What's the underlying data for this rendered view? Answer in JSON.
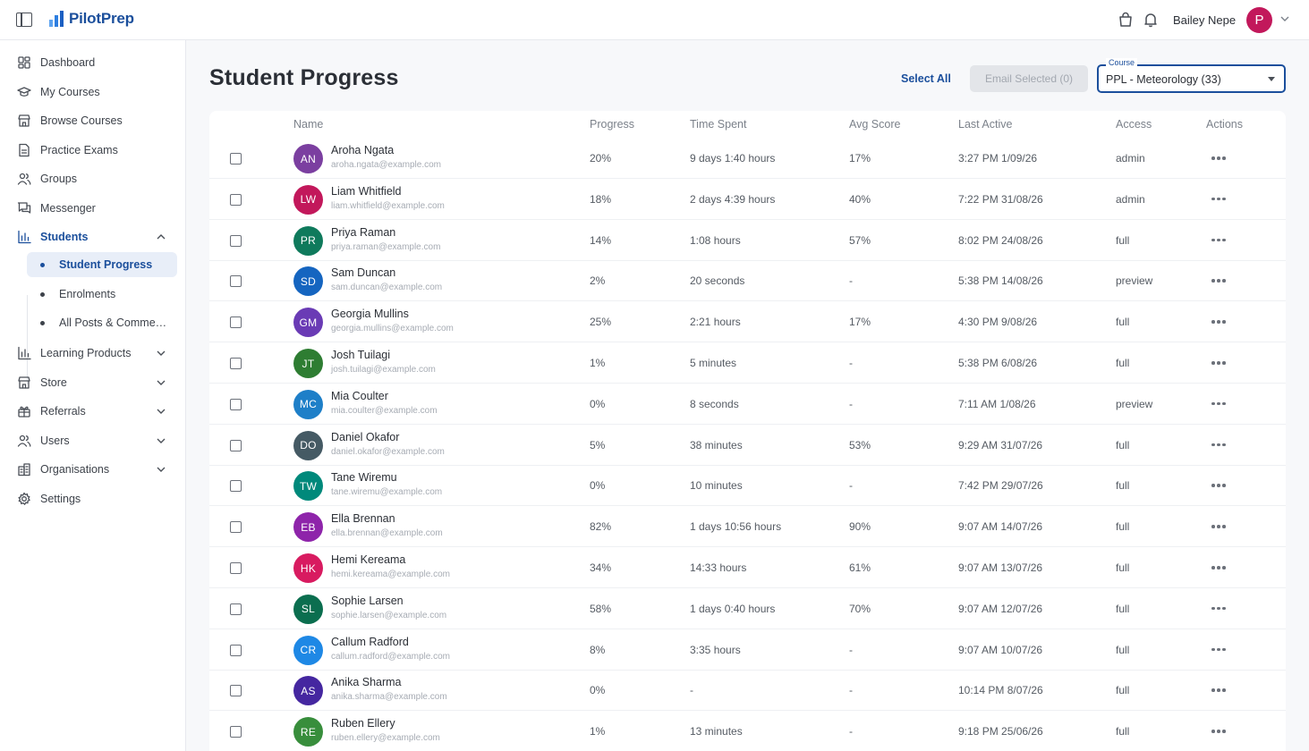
{
  "app": {
    "logo_text": "PilotPrep"
  },
  "header": {
    "user_name": "Bailey Nepe",
    "user_initial": "P",
    "avatar_color": "#c2185b"
  },
  "sidebar": {
    "items": [
      {
        "label": "Dashboard",
        "icon": "dashboard-icon"
      },
      {
        "label": "My Courses",
        "icon": "graduation-cap-icon"
      },
      {
        "label": "Browse Courses",
        "icon": "store-icon"
      },
      {
        "label": "Practice Exams",
        "icon": "document-icon"
      },
      {
        "label": "Groups",
        "icon": "users-icon"
      },
      {
        "label": "Messenger",
        "icon": "chat-icon"
      },
      {
        "label": "Students",
        "icon": "bar-chart-icon"
      }
    ],
    "students_sub": [
      {
        "label": "Student Progress"
      },
      {
        "label": "Enrolments"
      },
      {
        "label": "All Posts & Comments"
      }
    ],
    "items_after": [
      {
        "label": "Learning Products",
        "icon": "bar-chart-icon"
      },
      {
        "label": "Store",
        "icon": "store-icon"
      },
      {
        "label": "Referrals",
        "icon": "gift-icon"
      },
      {
        "label": "Users",
        "icon": "users-icon"
      },
      {
        "label": "Organisations",
        "icon": "building-icon"
      },
      {
        "label": "Settings",
        "icon": "gear-icon"
      }
    ]
  },
  "main": {
    "title": "Student Progress",
    "select_all_label": "Select All",
    "email_selected_label": "Email Selected (0)",
    "course_label": "Course",
    "course_value": "PPL - Meteorology (33)"
  },
  "table": {
    "headers": {
      "name": "Name",
      "progress": "Progress",
      "time_spent": "Time Spent",
      "avg_score": "Avg Score",
      "last_active": "Last Active",
      "access": "Access",
      "actions": "Actions"
    },
    "rows": [
      {
        "initials": "AN",
        "color": "#7b3fa0",
        "name": "Aroha Ngata",
        "email": "aroha.ngata@example.com",
        "progress": "20%",
        "time": "9 days 1:40 hours",
        "score": "17%",
        "last": "3:27 PM 1/09/26",
        "access": "admin"
      },
      {
        "initials": "LW",
        "color": "#c2185b",
        "name": "Liam Whitfield",
        "email": "liam.whitfield@example.com",
        "progress": "18%",
        "time": "2 days 4:39 hours",
        "score": "40%",
        "last": "7:22 PM 31/08/26",
        "access": "admin"
      },
      {
        "initials": "PR",
        "color": "#0f7a5c",
        "name": "Priya Raman",
        "email": "priya.raman@example.com",
        "progress": "14%",
        "time": "1:08 hours",
        "score": "57%",
        "last": "8:02 PM 24/08/26",
        "access": "full"
      },
      {
        "initials": "SD",
        "color": "#1565c0",
        "name": "Sam Duncan",
        "email": "sam.duncan@example.com",
        "progress": "2%",
        "time": "20 seconds",
        "score": "-",
        "last": "5:38 PM 14/08/26",
        "access": "preview"
      },
      {
        "initials": "GM",
        "color": "#6a3bb5",
        "name": "Georgia Mullins",
        "email": "georgia.mullins@example.com",
        "progress": "25%",
        "time": "2:21 hours",
        "score": "17%",
        "last": "4:30 PM 9/08/26",
        "access": "full"
      },
      {
        "initials": "JT",
        "color": "#2e7d32",
        "name": "Josh Tuilagi",
        "email": "josh.tuilagi@example.com",
        "progress": "1%",
        "time": "5 minutes",
        "score": "-",
        "last": "5:38 PM 6/08/26",
        "access": "full"
      },
      {
        "initials": "MC",
        "color": "#1e7fc8",
        "name": "Mia Coulter",
        "email": "mia.coulter@example.com",
        "progress": "0%",
        "time": "8 seconds",
        "score": "-",
        "last": "7:11 AM 1/08/26",
        "access": "preview"
      },
      {
        "initials": "DO",
        "color": "#455a64",
        "name": "Daniel Okafor",
        "email": "daniel.okafor@example.com",
        "progress": "5%",
        "time": "38 minutes",
        "score": "53%",
        "last": "9:29 AM 31/07/26",
        "access": "full"
      },
      {
        "initials": "TW",
        "color": "#00897b",
        "name": "Tane Wiremu",
        "email": "tane.wiremu@example.com",
        "progress": "0%",
        "time": "10 minutes",
        "score": "-",
        "last": "7:42 PM 29/07/26",
        "access": "full"
      },
      {
        "initials": "EB",
        "color": "#8e24aa",
        "name": "Ella Brennan",
        "email": "ella.brennan@example.com",
        "progress": "82%",
        "time": "1 days 10:56 hours",
        "score": "90%",
        "last": "9:07 AM 14/07/26",
        "access": "full"
      },
      {
        "initials": "HK",
        "color": "#d81b60",
        "name": "Hemi Kereama",
        "email": "hemi.kereama@example.com",
        "progress": "34%",
        "time": "14:33 hours",
        "score": "61%",
        "last": "9:07 AM 13/07/26",
        "access": "full"
      },
      {
        "initials": "SL",
        "color": "#0b6e4f",
        "name": "Sophie Larsen",
        "email": "sophie.larsen@example.com",
        "progress": "58%",
        "time": "1 days 0:40 hours",
        "score": "70%",
        "last": "9:07 AM 12/07/26",
        "access": "full"
      },
      {
        "initials": "CR",
        "color": "#1e88e5",
        "name": "Callum Radford",
        "email": "callum.radford@example.com",
        "progress": "8%",
        "time": "3:35 hours",
        "score": "-",
        "last": "9:07 AM 10/07/26",
        "access": "full"
      },
      {
        "initials": "AS",
        "color": "#4527a0",
        "name": "Anika Sharma",
        "email": "anika.sharma@example.com",
        "progress": "0%",
        "time": "-",
        "score": "-",
        "last": "10:14 PM 8/07/26",
        "access": "full"
      },
      {
        "initials": "RE",
        "color": "#388e3c",
        "name": "Ruben Ellery",
        "email": "ruben.ellery@example.com",
        "progress": "1%",
        "time": "13 minutes",
        "score": "-",
        "last": "9:18 PM 25/06/26",
        "access": "full"
      }
    ]
  }
}
